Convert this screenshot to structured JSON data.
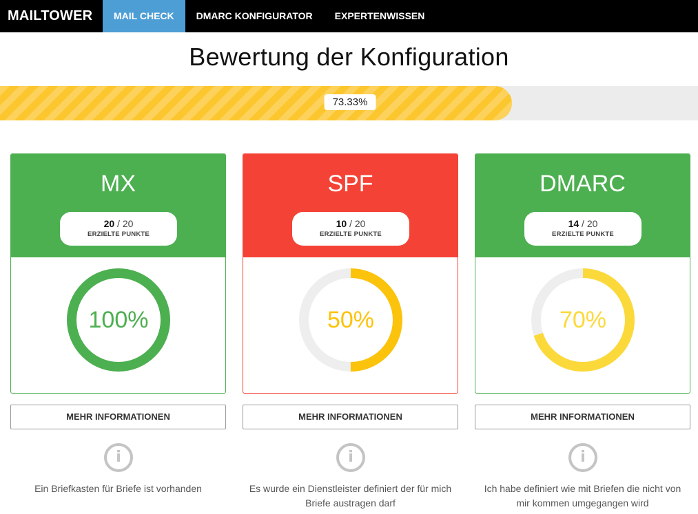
{
  "nav": {
    "brand": "MAILTOWER",
    "items": [
      {
        "label": "MAIL CHECK",
        "active": true
      },
      {
        "label": "DMARC KONFIGURATOR",
        "active": false
      },
      {
        "label": "EXPERTENWISSEN",
        "active": false
      }
    ]
  },
  "title": "Bewertung der Konfiguration",
  "progress": {
    "label": "73.33%",
    "value": 73.33
  },
  "cards": [
    {
      "title": "MX",
      "points": "20",
      "max": "20",
      "points_caption": "ERZIELTE PUNKTE",
      "percent_label": "100%",
      "percent": 100,
      "header_color": "#4caf50",
      "ring_color": "#4caf50",
      "border_color": "#4caf50",
      "button": "MEHR INFORMATIONEN",
      "info_icon": "info-icon",
      "description": "Ein Briefkasten für Briefe ist vorhanden"
    },
    {
      "title": "SPF",
      "points": "10",
      "max": "20",
      "points_caption": "ERZIELTE PUNKTE",
      "percent_label": "50%",
      "percent": 50,
      "header_color": "#f44336",
      "ring_color": "#fcc30c",
      "border_color": "#f44336",
      "button": "MEHR INFORMATIONEN",
      "info_icon": "info-icon",
      "description": "Es wurde ein Dienstleister definiert der für mich Briefe austragen darf"
    },
    {
      "title": "DMARC",
      "points": "14",
      "max": "20",
      "points_caption": "ERZIELTE PUNKTE",
      "percent_label": "70%",
      "percent": 70,
      "header_color": "#4caf50",
      "ring_color": "#fcd93a",
      "border_color": "#4caf50",
      "button": "MEHR INFORMATIONEN",
      "info_icon": "info-icon",
      "description": "Ich habe definiert wie mit Briefen die nicht von mir kommen umgegangen wird"
    }
  ],
  "colors": {
    "nav_active": "#4e9ed6",
    "progress_fill": "#fcc62e",
    "progress_track": "#ececec",
    "ring_track": "#eeeeee"
  }
}
